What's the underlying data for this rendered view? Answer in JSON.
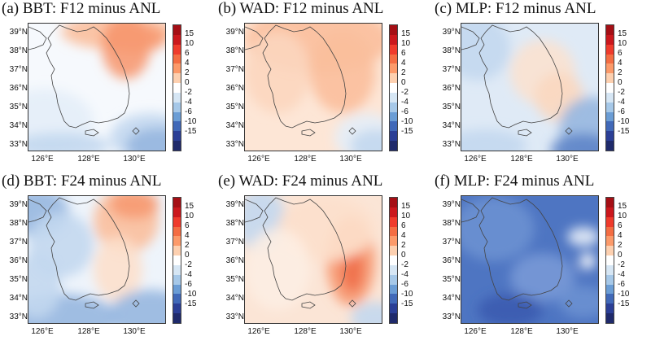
{
  "panels": [
    {
      "id": "a",
      "title": "(a) BBT: F12 minus ANL",
      "pattern": "bbt12"
    },
    {
      "id": "b",
      "title": "(b) WAD: F12 minus ANL",
      "pattern": "wad12"
    },
    {
      "id": "c",
      "title": "(c) MLP: F12 minus ANL",
      "pattern": "mlp12"
    },
    {
      "id": "d",
      "title": "(d) BBT: F24 minus ANL",
      "pattern": "bbt24"
    },
    {
      "id": "e",
      "title": "(e) WAD: F24 minus ANL",
      "pattern": "wad24"
    },
    {
      "id": "f",
      "title": "(f) MLP: F24 minus ANL",
      "pattern": "mlp24"
    }
  ],
  "lat_labels": [
    "39°N",
    "38°N",
    "37°N",
    "36°N",
    "35°N",
    "34°N",
    "33°N"
  ],
  "lon_labels": [
    "126°E",
    "128°E",
    "130°E"
  ],
  "colorbar": {
    "labels": [
      "15",
      "10",
      "6",
      "4",
      "2",
      "0",
      "-2",
      "-4",
      "-6",
      "-10",
      "-15"
    ],
    "colors": [
      "#a50f15",
      "#cb181d",
      "#ef3b2c",
      "#f46d43",
      "#fc9a6a",
      "#fdd0b0",
      "#ffffff",
      "#d6e6f4",
      "#a6c8e8",
      "#6b9dd5",
      "#4169b8",
      "#2b3f96",
      "#1f2a6b"
    ]
  }
}
